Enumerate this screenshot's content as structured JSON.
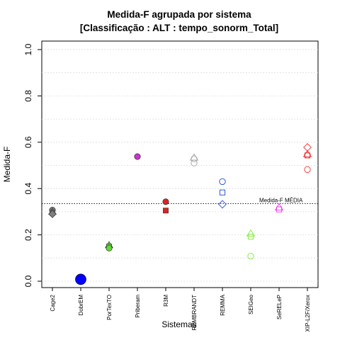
{
  "chart_data": {
    "type": "scatter",
    "title": "Medida-F agrupada por sistema",
    "subtitle": "[Classificação : ALT : tempo_sonorm_Total]",
    "xlabel": "Sistemas",
    "ylabel": "Medida-F",
    "ylim": [
      0,
      1
    ],
    "yticks": [
      "0.0",
      "0.2",
      "0.4",
      "0.6",
      "0.8",
      "1.0"
    ],
    "grid": true,
    "categories": [
      "Cage2",
      "DobrEM",
      "PorTexTO",
      "Priberam",
      "R3M",
      "REMBRANDT",
      "REMMA",
      "SEIGeo",
      "SeRELeP",
      "XIP-L2F/Xerox"
    ],
    "reference_line": {
      "label": "Medida-F MÉDIA",
      "value": 0.335
    },
    "points": [
      {
        "category": "Cage2",
        "y": 0.307,
        "shape": "circle",
        "filled": true,
        "color": "#7f7f7f"
      },
      {
        "category": "Cage2",
        "y": 0.299,
        "shape": "triangle",
        "filled": true,
        "color": "#7f7f7f"
      },
      {
        "category": "Cage2",
        "y": 0.295,
        "shape": "square",
        "filled": true,
        "color": "#7f7f7f"
      },
      {
        "category": "Cage2",
        "y": 0.29,
        "shape": "diamond",
        "filled": true,
        "color": "#7f7f7f"
      },
      {
        "category": "DobrEM",
        "y": 0.008,
        "shape": "circle",
        "filled": true,
        "color": "#0000ff",
        "size": "large"
      },
      {
        "category": "PorTexTO",
        "y": 0.155,
        "shape": "triangle",
        "filled": true,
        "color": "#61d836"
      },
      {
        "category": "PorTexTO",
        "y": 0.15,
        "shape": "square",
        "filled": true,
        "color": "#61d836"
      },
      {
        "category": "PorTexTO",
        "y": 0.143,
        "shape": "circle",
        "filled": true,
        "color": "#61d836"
      },
      {
        "category": "Priberam",
        "y": 0.538,
        "shape": "circle",
        "filled": true,
        "color": "#cc33cc"
      },
      {
        "category": "R3M",
        "y": 0.343,
        "shape": "circle",
        "filled": true,
        "color": "#dd2222"
      },
      {
        "category": "R3M",
        "y": 0.305,
        "shape": "square",
        "filled": true,
        "color": "#dd2222"
      },
      {
        "category": "REMBRANDT",
        "y": 0.533,
        "shape": "triangle",
        "filled": false,
        "color": "#aaaaaa"
      },
      {
        "category": "REMBRANDT",
        "y": 0.528,
        "shape": "circle",
        "filled": false,
        "color": "#aaaaaa"
      },
      {
        "category": "REMBRANDT",
        "y": 0.51,
        "shape": "circle",
        "filled": false,
        "color": "#aaaaaa"
      },
      {
        "category": "REMMA",
        "y": 0.43,
        "shape": "circle",
        "filled": false,
        "color": "#3355dd"
      },
      {
        "category": "REMMA",
        "y": 0.383,
        "shape": "square",
        "filled": false,
        "color": "#3355dd"
      },
      {
        "category": "REMMA",
        "y": 0.332,
        "shape": "diamond",
        "filled": false,
        "color": "#3355dd"
      },
      {
        "category": "SEIGeo",
        "y": 0.205,
        "shape": "triangle",
        "filled": false,
        "color": "#88ee44"
      },
      {
        "category": "SEIGeo",
        "y": 0.192,
        "shape": "square",
        "filled": false,
        "color": "#88ee44"
      },
      {
        "category": "SEIGeo",
        "y": 0.108,
        "shape": "circle",
        "filled": false,
        "color": "#88ee44"
      },
      {
        "category": "SeRELeP",
        "y": 0.318,
        "shape": "triangle",
        "filled": false,
        "color": "#ee44ee"
      },
      {
        "category": "SeRELeP",
        "y": 0.31,
        "shape": "square",
        "filled": false,
        "color": "#ee44ee"
      },
      {
        "category": "XIP-L2F/Xerox",
        "y": 0.578,
        "shape": "diamond",
        "filled": false,
        "color": "#ee4444"
      },
      {
        "category": "XIP-L2F/Xerox",
        "y": 0.548,
        "shape": "triangle",
        "filled": false,
        "color": "#ee4444"
      },
      {
        "category": "XIP-L2F/Xerox",
        "y": 0.545,
        "shape": "circle",
        "filled": false,
        "color": "#ee4444"
      },
      {
        "category": "XIP-L2F/Xerox",
        "y": 0.543,
        "shape": "square",
        "filled": false,
        "color": "#ee4444"
      },
      {
        "category": "XIP-L2F/Xerox",
        "y": 0.482,
        "shape": "circle",
        "filled": false,
        "color": "#ee4444"
      }
    ]
  }
}
